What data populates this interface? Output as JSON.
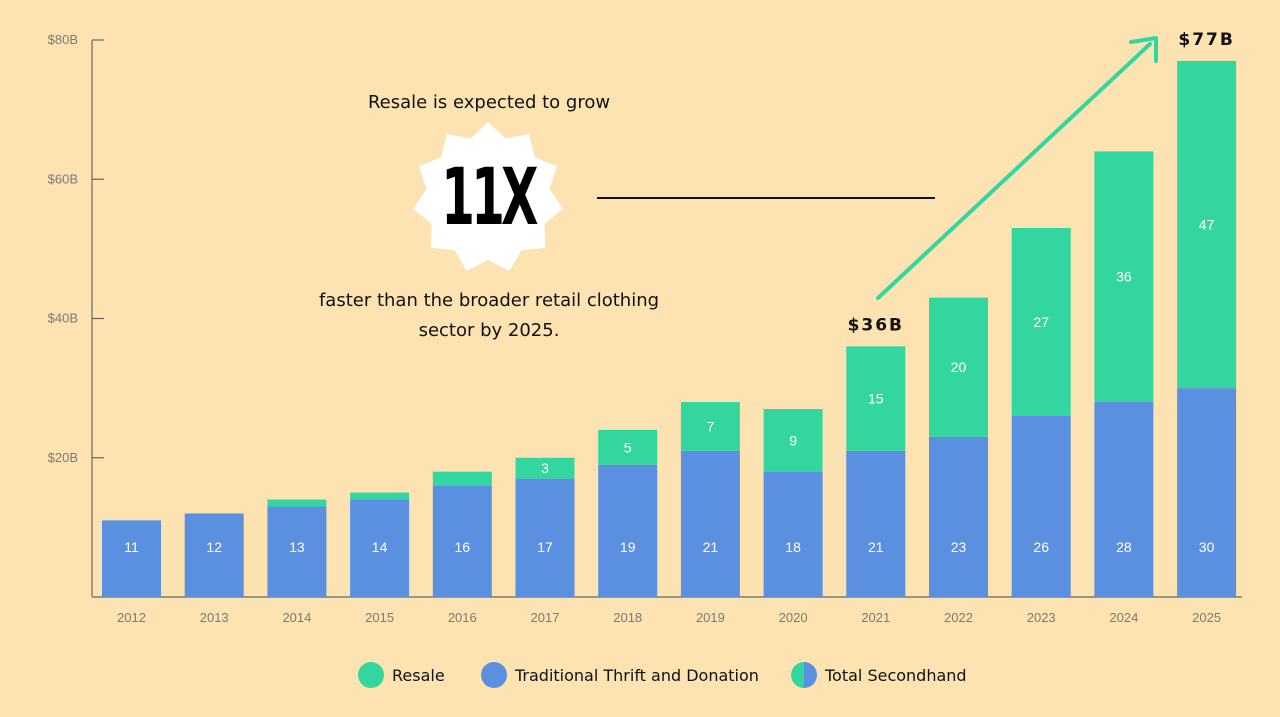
{
  "chart_data": {
    "type": "bar",
    "stacked": true,
    "categories": [
      "2012",
      "2013",
      "2014",
      "2015",
      "2016",
      "2017",
      "2018",
      "2019",
      "2020",
      "2021",
      "2022",
      "2023",
      "2024",
      "2025"
    ],
    "series": [
      {
        "name": "Traditional Thrift and Donation",
        "color": "#5B8FDF",
        "values": [
          11,
          12,
          13,
          14,
          16,
          17,
          19,
          21,
          18,
          21,
          23,
          26,
          28,
          30
        ],
        "labels": [
          "11",
          "12",
          "13",
          "14",
          "16",
          "17",
          "19",
          "21",
          "18",
          "21",
          "23",
          "26",
          "28",
          "30"
        ]
      },
      {
        "name": "Resale",
        "color": "#34D6A0",
        "values": [
          0,
          0,
          1,
          1,
          2,
          3,
          5,
          7,
          9,
          15,
          20,
          27,
          36,
          47
        ],
        "labels": [
          "",
          "",
          "",
          "",
          "",
          "3",
          "5",
          "7",
          "9",
          "15",
          "20",
          "27",
          "36",
          "47"
        ]
      }
    ],
    "yticks": [
      {
        "value": 20,
        "label": "$20B"
      },
      {
        "value": 40,
        "label": "$40B"
      },
      {
        "value": 60,
        "label": "$60B"
      },
      {
        "value": 80,
        "label": "$80B"
      }
    ],
    "ylim": [
      0,
      80
    ],
    "annotations": [
      {
        "text": "$36B",
        "category": "2021",
        "value": 36
      },
      {
        "text": "$77B",
        "category": "2025",
        "value": 77
      }
    ],
    "legend": {
      "placement": "bottom",
      "items": [
        {
          "label": "Resale",
          "color": "#34D6A0"
        },
        {
          "label": "Traditional Thrift and Donation",
          "color": "#5B8FDF"
        },
        {
          "label": "Total Secondhand",
          "color_left": "#34D6A0",
          "color_right": "#5B8FDF"
        }
      ]
    },
    "message": {
      "top": "Resale is expected to grow",
      "highlight": "11X",
      "bottom": "faster than the broader retail clothing sector by 2025."
    }
  }
}
